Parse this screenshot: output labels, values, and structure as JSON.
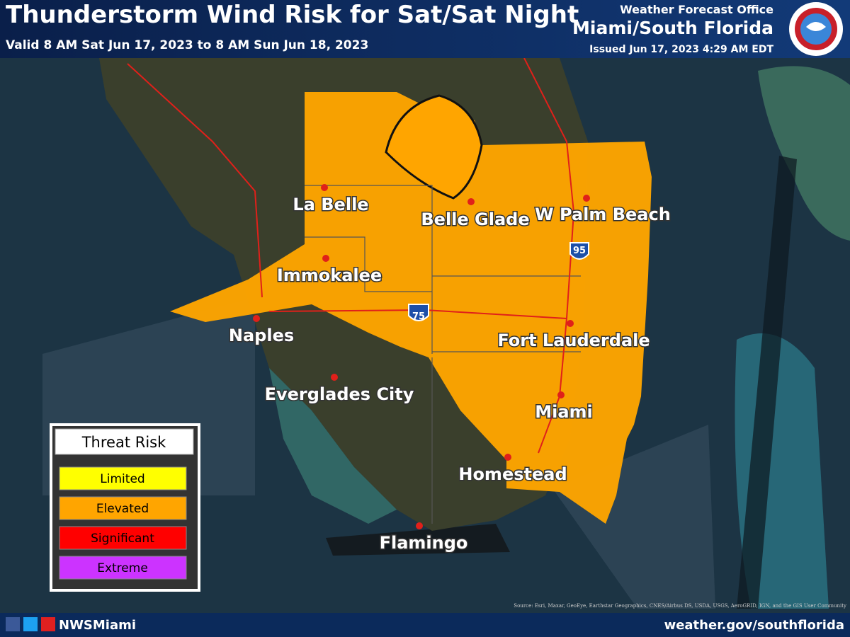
{
  "header": {
    "title": "Thunderstorm Wind Risk for Sat/Sat Night",
    "valid": "Valid 8 AM Sat Jun 17, 2023 to 8 AM Sun Jun 18, 2023",
    "office_line1": "Weather Forecast Office",
    "office_line2": "Miami/South Florida",
    "issued": "Issued Jun 17, 2023 4:29 AM EDT"
  },
  "map": {
    "cities": [
      "La Belle",
      "Belle Glade",
      "W Palm Beach",
      "Immokalee",
      "Naples",
      "Fort Lauderdale",
      "Everglades City",
      "Miami",
      "Homestead",
      "Flamingo"
    ],
    "highways": [
      "95",
      "75"
    ],
    "source": "Source: Esri, Maxar, GeoEye, Earthstar Geographics, CNES/Airbus DS, USDA, USGS, AeroGRID, IGN, and the GIS User Community"
  },
  "legend": {
    "title": "Threat Risk",
    "levels": [
      {
        "label": "Limited",
        "color": "#ffff00"
      },
      {
        "label": "Elevated",
        "color": "#ffa500"
      },
      {
        "label": "Significant",
        "color": "#ff0000"
      },
      {
        "label": "Extreme",
        "color": "#cc33ff"
      }
    ]
  },
  "footer": {
    "handle": "NWSMiami",
    "url": "weather.gov/southflorida"
  }
}
